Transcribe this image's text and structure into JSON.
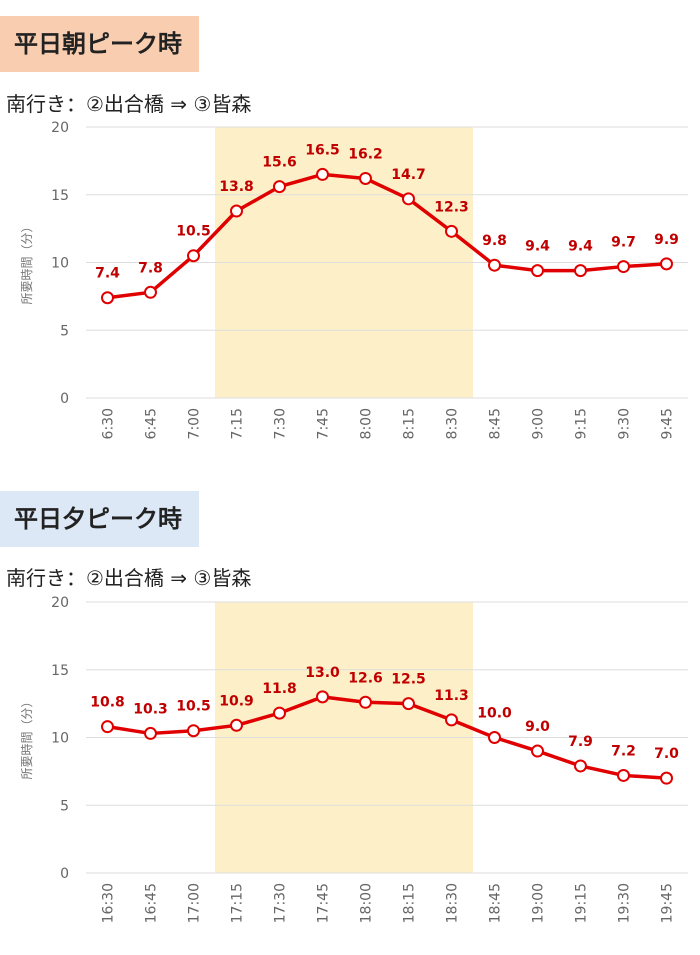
{
  "sections": [
    {
      "title": "平日朝ピーク時",
      "route": "南行き：②出合橋 ⇒ ③皆森"
    },
    {
      "title": "平日夕ピーク時",
      "route": "南行き：②出合橋 ⇒ ③皆森"
    }
  ],
  "colors": {
    "line": "#e00000",
    "highlight": "#fdf0c8",
    "grid": "#dddddd",
    "label": "#c00000"
  },
  "chart_data": [
    {
      "type": "line",
      "title": "平日朝ピーク時",
      "ylabel": "所要時間（分）",
      "xlabel": "",
      "ylim": [
        0,
        20
      ],
      "yticks": [
        0,
        5,
        10,
        15,
        20
      ],
      "grid": true,
      "categories": [
        "6:30",
        "6:45",
        "7:00",
        "7:15",
        "7:30",
        "7:45",
        "8:00",
        "8:15",
        "8:30",
        "8:45",
        "9:00",
        "9:15",
        "9:30",
        "9:45"
      ],
      "values": [
        7.4,
        7.8,
        10.5,
        13.8,
        15.6,
        16.5,
        16.2,
        14.7,
        12.3,
        9.8,
        9.4,
        9.4,
        9.7,
        9.9
      ],
      "labels": [
        "7.4",
        "7.8",
        "10.5",
        "13.8",
        "15.6",
        "16.5",
        "16.2",
        "14.7",
        "12.3",
        "9.8",
        "9.4",
        "9.4",
        "9.7",
        "9.9"
      ],
      "highlight_range": [
        "7:15",
        "8:30"
      ]
    },
    {
      "type": "line",
      "title": "平日夕ピーク時",
      "ylabel": "所要時間（分）",
      "xlabel": "",
      "ylim": [
        0,
        20
      ],
      "yticks": [
        0,
        5,
        10,
        15,
        20
      ],
      "grid": true,
      "categories": [
        "16:30",
        "16:45",
        "17:00",
        "17:15",
        "17:30",
        "17:45",
        "18:00",
        "18:15",
        "18:30",
        "18:45",
        "19:00",
        "19:15",
        "19:30",
        "19:45"
      ],
      "values": [
        10.8,
        10.3,
        10.5,
        10.9,
        11.8,
        13.0,
        12.6,
        12.5,
        11.3,
        10.0,
        9.0,
        7.9,
        7.2,
        7.0
      ],
      "labels": [
        "10.8",
        "10.3",
        "10.5",
        "10.9",
        "11.8",
        "13.0",
        "12.6",
        "12.5",
        "11.3",
        "10.0",
        "9.0",
        "7.9",
        "7.2",
        "7.0"
      ],
      "highlight_range": [
        "17:15",
        "18:30"
      ]
    }
  ]
}
